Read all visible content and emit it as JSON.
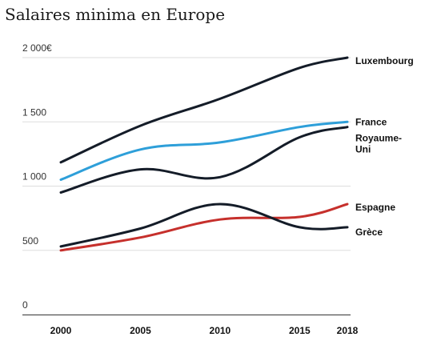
{
  "chart_data": {
    "type": "line",
    "title": "Salaires minima en Europe",
    "xlabel": "",
    "ylabel": "",
    "x": [
      2000,
      2005,
      2010,
      2015,
      2018
    ],
    "x_ticks": [
      "2000",
      "2005",
      "2010",
      "2015",
      "2018"
    ],
    "xlim": [
      2000,
      2018
    ],
    "y_ticks": [
      {
        "value": 0,
        "label": "0"
      },
      {
        "value": 500,
        "label": "500"
      },
      {
        "value": 1000,
        "label": "1 000"
      },
      {
        "value": 1500,
        "label": "1 500"
      },
      {
        "value": 2000,
        "label": "2 000€"
      }
    ],
    "ylim": [
      0,
      2000
    ],
    "grid": true,
    "legend": "direct labels at right end of lines",
    "series": [
      {
        "name": "Luxembourg",
        "color": "#141c28",
        "label_lines": [
          "Luxembourg"
        ],
        "values": [
          1185,
          1470,
          1680,
          1920,
          2000
        ]
      },
      {
        "name": "France",
        "color": "#2e9fd9",
        "label_lines": [
          "France"
        ],
        "values": [
          1050,
          1285,
          1340,
          1460,
          1500
        ]
      },
      {
        "name": "Royaume-Uni",
        "color": "#141c28",
        "label_lines": [
          "Royaume-",
          "Uni"
        ],
        "values": [
          950,
          1130,
          1070,
          1380,
          1460
        ]
      },
      {
        "name": "Espagne",
        "color": "#c6302c",
        "label_lines": [
          "Espagne"
        ],
        "values": [
          500,
          600,
          740,
          760,
          860
        ]
      },
      {
        "name": "Grèce",
        "color": "#141c28",
        "label_lines": [
          "Grèce"
        ],
        "values": [
          530,
          670,
          860,
          680,
          680
        ]
      }
    ]
  }
}
